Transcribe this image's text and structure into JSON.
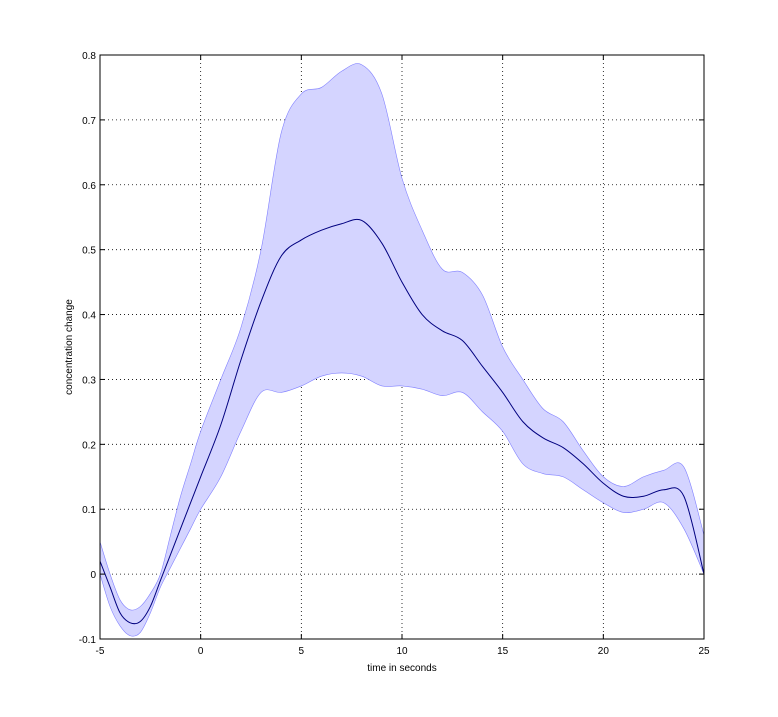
{
  "chart_data": {
    "type": "line",
    "title": "",
    "xlabel": "time in seconds",
    "ylabel": "concentration change",
    "xlim": [
      -5,
      25
    ],
    "ylim": [
      -0.1,
      0.8
    ],
    "xticks": [
      -5,
      0,
      5,
      10,
      15,
      20,
      25
    ],
    "yticks": [
      -0.1,
      0,
      0.1,
      0.2,
      0.3,
      0.4,
      0.5,
      0.6,
      0.7,
      0.8
    ],
    "grid": true,
    "colors": {
      "line": "#00007f",
      "band_fill": "#d4d4ff",
      "band_edge": "#8080ff"
    },
    "series": [
      {
        "x": [
          -5,
          -4.5,
          -4,
          -3.5,
          -3,
          -2.5,
          -2,
          -1.5,
          -1,
          -0.5,
          0,
          1,
          2,
          3,
          4,
          5,
          6,
          7,
          8,
          9,
          10,
          11,
          12,
          13,
          14,
          15,
          16,
          17,
          18,
          19,
          20,
          21,
          22,
          23,
          24,
          25
        ],
        "mean": [
          0.02,
          -0.02,
          -0.06,
          -0.075,
          -0.073,
          -0.05,
          -0.01,
          0.03,
          0.07,
          0.11,
          0.15,
          0.23,
          0.33,
          0.42,
          0.49,
          0.515,
          0.53,
          0.54,
          0.545,
          0.51,
          0.45,
          0.4,
          0.375,
          0.36,
          0.32,
          0.28,
          0.235,
          0.21,
          0.195,
          0.17,
          0.14,
          0.12,
          0.12,
          0.13,
          0.12,
          0.0
        ],
        "upper": [
          0.05,
          0.0,
          -0.04,
          -0.055,
          -0.05,
          -0.03,
          0.0,
          0.06,
          0.12,
          0.17,
          0.22,
          0.3,
          0.38,
          0.5,
          0.68,
          0.74,
          0.75,
          0.775,
          0.785,
          0.74,
          0.61,
          0.53,
          0.47,
          0.465,
          0.43,
          0.35,
          0.3,
          0.255,
          0.235,
          0.19,
          0.15,
          0.135,
          0.15,
          0.16,
          0.165,
          0.06
        ],
        "lower": [
          0.0,
          -0.05,
          -0.08,
          -0.095,
          -0.09,
          -0.06,
          -0.02,
          0.01,
          0.04,
          0.07,
          0.1,
          0.15,
          0.22,
          0.28,
          0.28,
          0.29,
          0.305,
          0.31,
          0.305,
          0.29,
          0.29,
          0.285,
          0.275,
          0.28,
          0.25,
          0.22,
          0.17,
          0.155,
          0.15,
          0.13,
          0.11,
          0.095,
          0.1,
          0.11,
          0.07,
          0.0
        ]
      }
    ]
  }
}
